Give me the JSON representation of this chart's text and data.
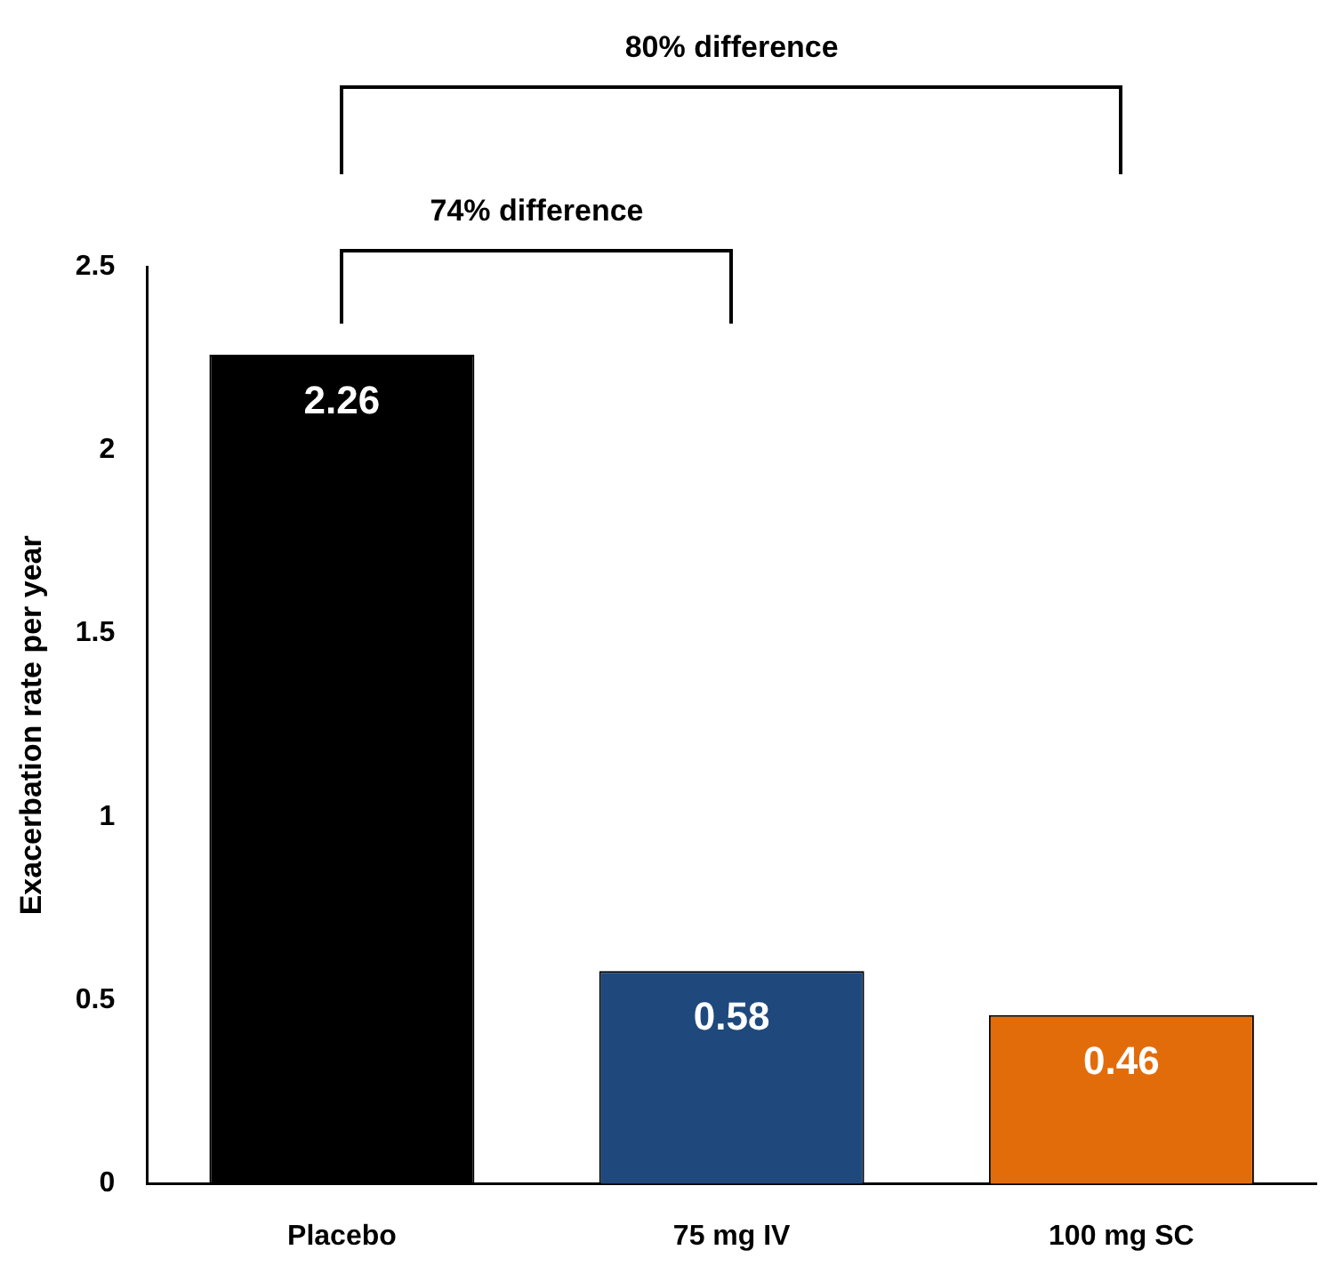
{
  "chart_data": {
    "type": "bar",
    "ylabel": "Exacerbation rate per year",
    "categories": [
      "Placebo",
      "75 mg IV",
      "100 mg SC"
    ],
    "values": [
      2.26,
      0.58,
      0.46
    ],
    "colors": [
      "#000000",
      "#1f497d",
      "#e36c0a"
    ],
    "ylim": [
      0,
      2.5
    ],
    "yticks": [
      0,
      0.5,
      1,
      1.5,
      2,
      2.5
    ],
    "grid": false,
    "legend": false,
    "data_labels": true,
    "annotations": [
      "80% difference",
      "74% difference"
    ]
  }
}
